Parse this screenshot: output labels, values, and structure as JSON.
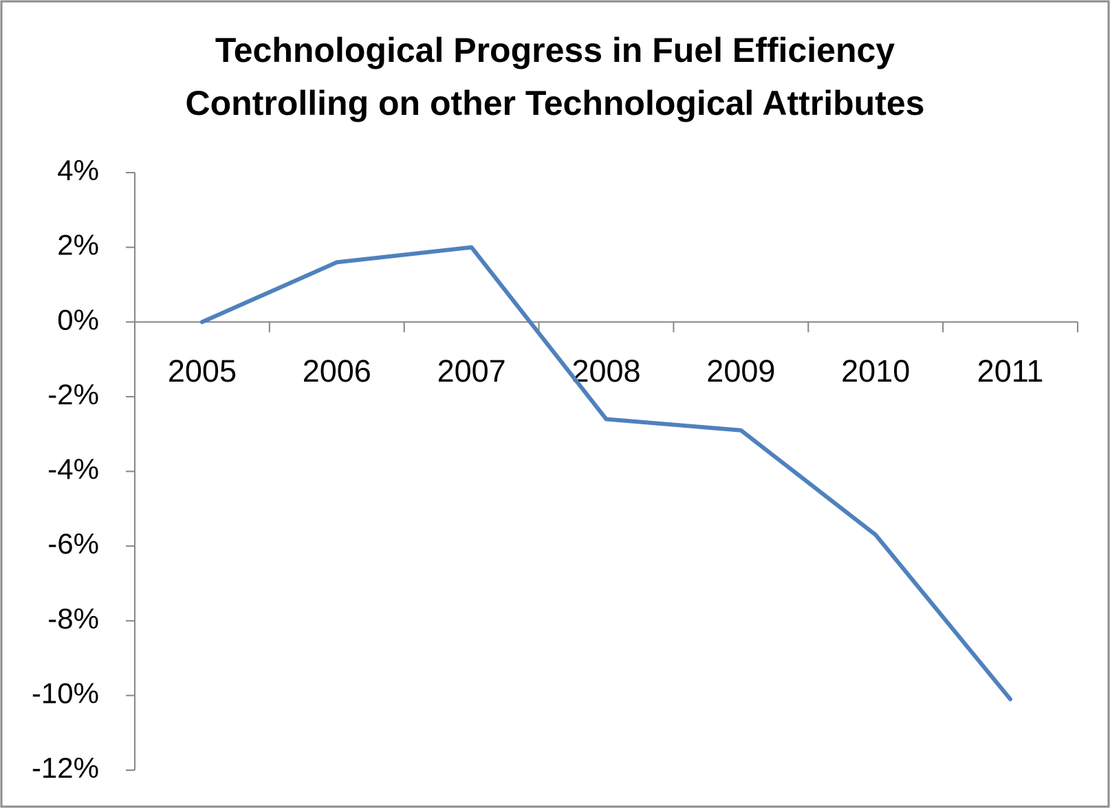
{
  "chart_data": {
    "type": "line",
    "title": [
      "Technological Progress in Fuel Efficiency",
      "Controlling on other Technological Attributes"
    ],
    "categories": [
      "2005",
      "2006",
      "2007",
      "2008",
      "2009",
      "2010",
      "2011"
    ],
    "series": [
      {
        "color": "#4f81bd",
        "values": [
          0,
          1.6,
          2.0,
          -2.6,
          -2.9,
          -5.7,
          -10.1
        ]
      }
    ],
    "ylim": [
      -12,
      4
    ],
    "yticks": [
      {
        "value": -12,
        "label": "-12%"
      },
      {
        "value": -10,
        "label": "-10%"
      },
      {
        "value": -8,
        "label": "-8%"
      },
      {
        "value": -6,
        "label": "-6%"
      },
      {
        "value": -4,
        "label": "-4%"
      },
      {
        "value": -2,
        "label": "-2%"
      },
      {
        "value": 0,
        "label": "0%"
      },
      {
        "value": 2,
        "label": "2%"
      },
      {
        "value": 4,
        "label": "4%"
      }
    ],
    "grid": false
  }
}
